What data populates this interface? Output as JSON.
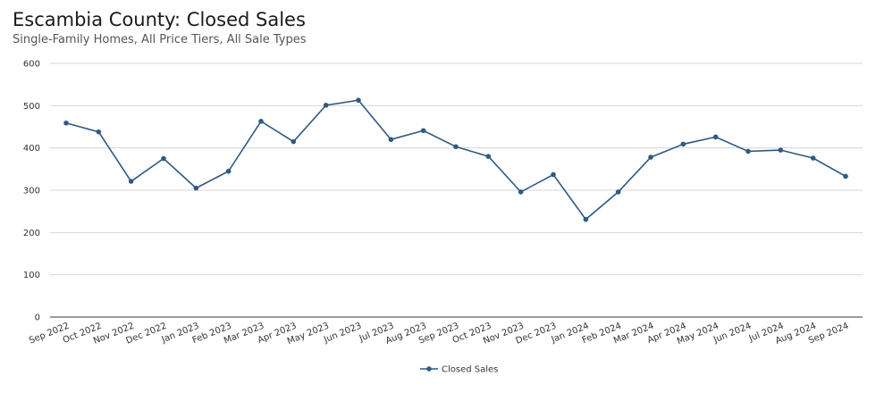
{
  "chart_data": {
    "type": "line",
    "title": "Escambia County: Closed Sales",
    "subtitle": "Single-Family Homes, All Price Tiers, All Sale Types",
    "xlabel": "",
    "ylabel": "",
    "ylim": [
      0,
      600
    ],
    "yticks": [
      "0",
      "100",
      "200",
      "300",
      "400",
      "500",
      "600"
    ],
    "grid": "horizontal",
    "legend_position": "bottom-center",
    "categories": [
      "Sep 2022",
      "Oct 2022",
      "Nov 2022",
      "Dec 2022",
      "Jan 2023",
      "Feb 2023",
      "Mar 2023",
      "Apr 2023",
      "May 2023",
      "Jun 2023",
      "Jul 2023",
      "Aug 2023",
      "Sep 2023",
      "Oct 2023",
      "Nov 2023",
      "Dec 2023",
      "Jan 2024",
      "Feb 2024",
      "Mar 2024",
      "Apr 2024",
      "May 2024",
      "Jun 2024",
      "Jul 2024",
      "Aug 2024",
      "Sep 2024"
    ],
    "series": [
      {
        "name": "Closed Sales",
        "color": "#2e5a84",
        "values": [
          459,
          438,
          321,
          375,
          305,
          345,
          463,
          415,
          501,
          513,
          420,
          441,
          403,
          380,
          296,
          337,
          231,
          296,
          378,
          409,
          426,
          392,
          395,
          376,
          333
        ]
      }
    ]
  }
}
